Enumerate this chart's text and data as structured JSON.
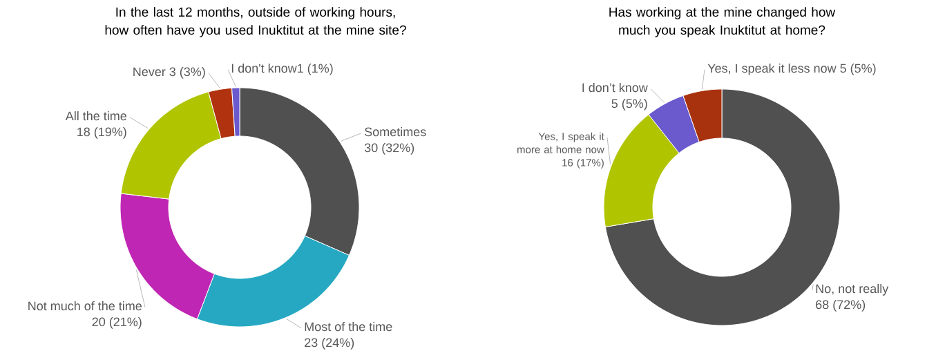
{
  "chart_data": [
    {
      "type": "donut",
      "title": "In the last 12 months, outside of working hours, how often have you used Inuktitut at the mine site?",
      "categories": [
        "Sometimes",
        "Most of the time",
        "Not much of the time",
        "All the time",
        "Never",
        "I don't know"
      ],
      "values": [
        30,
        23,
        20,
        18,
        3,
        1
      ],
      "colors": [
        "#505050",
        "#26a8c2",
        "#c026b4",
        "#b0c400",
        "#b0320e",
        "#6a5acd"
      ],
      "value_labels": [
        "30 (32%)",
        "23 (24%)",
        "20 (21%)",
        "18 (19%)",
        "3 (3%)",
        "1 (1%)"
      ]
    },
    {
      "type": "donut",
      "title": "Has working at the mine changed how much you speak Inuktitut at home?",
      "categories": [
        "No, not really",
        "Yes, I speak it more at home now",
        "I don’t know",
        "Yes, I speak it less now"
      ],
      "values": [
        68,
        16,
        5,
        5
      ],
      "colors": [
        "#505050",
        "#b0c400",
        "#6a5acd",
        "#a8320e"
      ],
      "value_labels": [
        "68 (72%)",
        "16 (17%)",
        "5 (5%)",
        "5 (5%)"
      ]
    }
  ]
}
